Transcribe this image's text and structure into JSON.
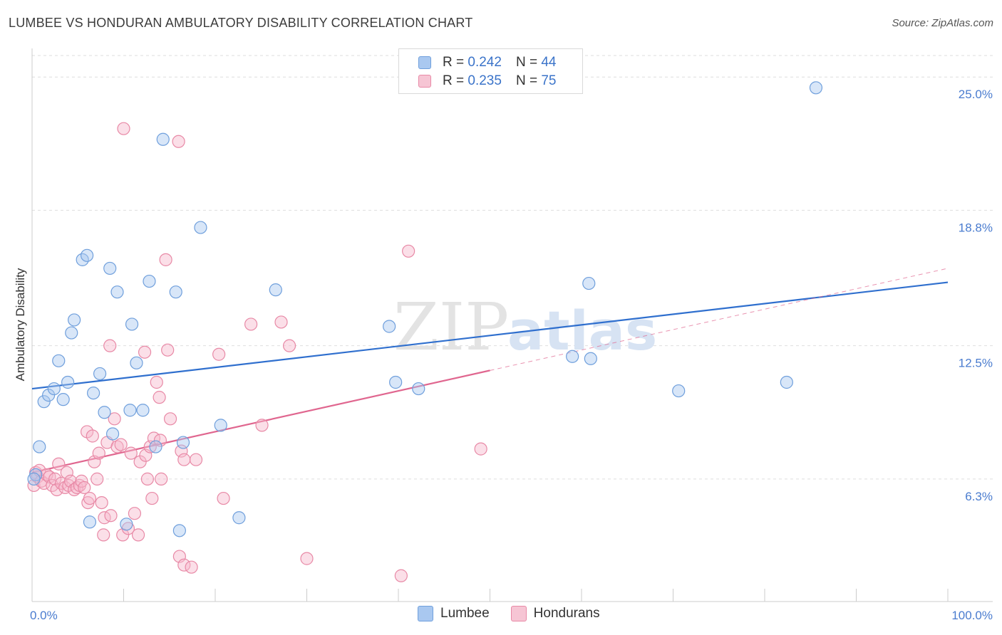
{
  "header": {
    "title": "LUMBEE VS HONDURAN AMBULATORY DISABILITY CORRELATION CHART",
    "source": "Source: ZipAtlas.com"
  },
  "watermark": {
    "zip": "ZIP",
    "atlas": "atlas"
  },
  "legend": {
    "rows": [
      {
        "r_label": "R = ",
        "r_value": "0.242",
        "n_label": "N = ",
        "n_value": "44"
      },
      {
        "r_label": "R = ",
        "r_value": "0.235",
        "n_label": "N = ",
        "n_value": "75"
      }
    ]
  },
  "colors": {
    "lumbee_fill": "#a9c8f0",
    "lumbee_stroke": "#6f9fdc",
    "lumbee_line": "#2f6fce",
    "honduran_fill": "#f6b8cb",
    "honduran_stroke": "#e889a6",
    "honduran_line": "#e0668f",
    "tick": "#4a7ccf",
    "grid": "#dedede"
  },
  "chart_data": {
    "type": "scatter",
    "title": "LUMBEE VS HONDURAN AMBULATORY DISABILITY CORRELATION CHART",
    "xlabel": "",
    "ylabel": "Ambulatory Disability",
    "xlim": [
      0,
      100
    ],
    "ylim": [
      0.6,
      26.0
    ],
    "x_tick_labels": [
      "0.0%",
      "100.0%"
    ],
    "y_ticks": [
      6.3,
      12.5,
      18.8,
      25.0
    ],
    "y_tick_labels": [
      "6.3%",
      "12.5%",
      "18.8%",
      "25.0%"
    ],
    "series": [
      {
        "name": "Lumbee",
        "r": 0.242,
        "n": 44,
        "trend": {
          "x0": 0,
          "y0": 10.5,
          "x1": 100,
          "y1": 15.45
        },
        "points": [
          [
            0.8,
            7.8
          ],
          [
            1.3,
            9.9
          ],
          [
            1.8,
            10.2
          ],
          [
            2.4,
            10.5
          ],
          [
            2.9,
            11.8
          ],
          [
            3.4,
            10.0
          ],
          [
            3.9,
            10.8
          ],
          [
            4.3,
            13.1
          ],
          [
            4.6,
            13.7
          ],
          [
            5.5,
            16.5
          ],
          [
            6.0,
            16.7
          ],
          [
            6.3,
            4.3
          ],
          [
            6.7,
            10.3
          ],
          [
            7.4,
            11.2
          ],
          [
            7.9,
            9.4
          ],
          [
            8.5,
            16.1
          ],
          [
            8.8,
            8.4
          ],
          [
            9.3,
            15.0
          ],
          [
            10.3,
            4.2
          ],
          [
            10.7,
            9.5
          ],
          [
            10.9,
            13.5
          ],
          [
            11.4,
            11.7
          ],
          [
            12.1,
            9.5
          ],
          [
            12.8,
            15.5
          ],
          [
            13.5,
            7.8
          ],
          [
            14.3,
            22.1
          ],
          [
            15.7,
            15.0
          ],
          [
            16.1,
            3.9
          ],
          [
            16.5,
            8.0
          ],
          [
            18.4,
            18.0
          ],
          [
            20.6,
            8.8
          ],
          [
            22.6,
            4.5
          ],
          [
            26.6,
            15.1
          ],
          [
            39.7,
            10.8
          ],
          [
            39.0,
            13.4
          ],
          [
            42.2,
            10.5
          ],
          [
            59.0,
            12.0
          ],
          [
            60.8,
            15.4
          ],
          [
            61.0,
            11.9
          ],
          [
            70.6,
            10.4
          ],
          [
            82.4,
            10.8
          ],
          [
            85.6,
            24.5
          ],
          [
            0.4,
            6.5
          ],
          [
            0.2,
            6.3
          ]
        ]
      },
      {
        "name": "Hondurans",
        "r": 0.235,
        "n": 75,
        "trend": {
          "x0": 0,
          "y0": 6.6,
          "x1": 50,
          "y1": 11.35,
          "x_dash_end": 100,
          "y_dash_end": 16.1
        },
        "points": [
          [
            0.2,
            6.0
          ],
          [
            0.4,
            6.6
          ],
          [
            0.6,
            6.4
          ],
          [
            0.8,
            6.7
          ],
          [
            1.0,
            6.2
          ],
          [
            1.3,
            6.1
          ],
          [
            1.6,
            6.5
          ],
          [
            1.9,
            6.4
          ],
          [
            2.2,
            6.0
          ],
          [
            2.5,
            6.3
          ],
          [
            2.7,
            5.8
          ],
          [
            2.9,
            7.0
          ],
          [
            3.2,
            6.1
          ],
          [
            3.6,
            5.9
          ],
          [
            3.8,
            6.6
          ],
          [
            4.0,
            6.0
          ],
          [
            4.2,
            6.2
          ],
          [
            4.6,
            5.8
          ],
          [
            4.9,
            5.9
          ],
          [
            5.2,
            6.0
          ],
          [
            5.4,
            6.2
          ],
          [
            5.7,
            5.9
          ],
          [
            6.0,
            8.5
          ],
          [
            6.1,
            5.2
          ],
          [
            6.3,
            5.4
          ],
          [
            6.6,
            8.3
          ],
          [
            6.8,
            7.1
          ],
          [
            7.1,
            6.3
          ],
          [
            7.3,
            7.5
          ],
          [
            7.6,
            5.2
          ],
          [
            7.9,
            4.5
          ],
          [
            7.8,
            3.7
          ],
          [
            8.2,
            8.0
          ],
          [
            8.6,
            4.6
          ],
          [
            8.5,
            12.5
          ],
          [
            9.0,
            9.1
          ],
          [
            9.3,
            7.8
          ],
          [
            9.7,
            7.9
          ],
          [
            9.9,
            3.7
          ],
          [
            10.0,
            22.6
          ],
          [
            10.5,
            4.0
          ],
          [
            10.8,
            7.5
          ],
          [
            11.2,
            4.7
          ],
          [
            11.6,
            3.7
          ],
          [
            11.8,
            7.1
          ],
          [
            12.3,
            12.2
          ],
          [
            12.4,
            7.4
          ],
          [
            12.6,
            6.3
          ],
          [
            12.9,
            7.8
          ],
          [
            13.1,
            5.4
          ],
          [
            13.3,
            8.2
          ],
          [
            13.6,
            10.8
          ],
          [
            13.9,
            10.1
          ],
          [
            14.0,
            8.1
          ],
          [
            14.1,
            6.3
          ],
          [
            14.6,
            16.5
          ],
          [
            14.8,
            12.3
          ],
          [
            15.1,
            9.1
          ],
          [
            16.0,
            22.0
          ],
          [
            16.3,
            7.6
          ],
          [
            16.6,
            7.2
          ],
          [
            16.1,
            2.7
          ],
          [
            16.6,
            2.3
          ],
          [
            17.4,
            2.2
          ],
          [
            17.9,
            7.2
          ],
          [
            20.4,
            12.1
          ],
          [
            20.9,
            5.4
          ],
          [
            23.9,
            13.5
          ],
          [
            25.1,
            8.8
          ],
          [
            27.2,
            13.6
          ],
          [
            28.1,
            12.5
          ],
          [
            30.0,
            2.6
          ],
          [
            41.1,
            16.9
          ],
          [
            40.3,
            1.8
          ],
          [
            49.0,
            7.7
          ]
        ]
      }
    ],
    "legend_position": "top-center",
    "grid": true
  },
  "axes": {
    "ylabel": "Ambulatory Disability"
  },
  "bottom_legend": {
    "items": [
      "Lumbee",
      "Hondurans"
    ]
  }
}
